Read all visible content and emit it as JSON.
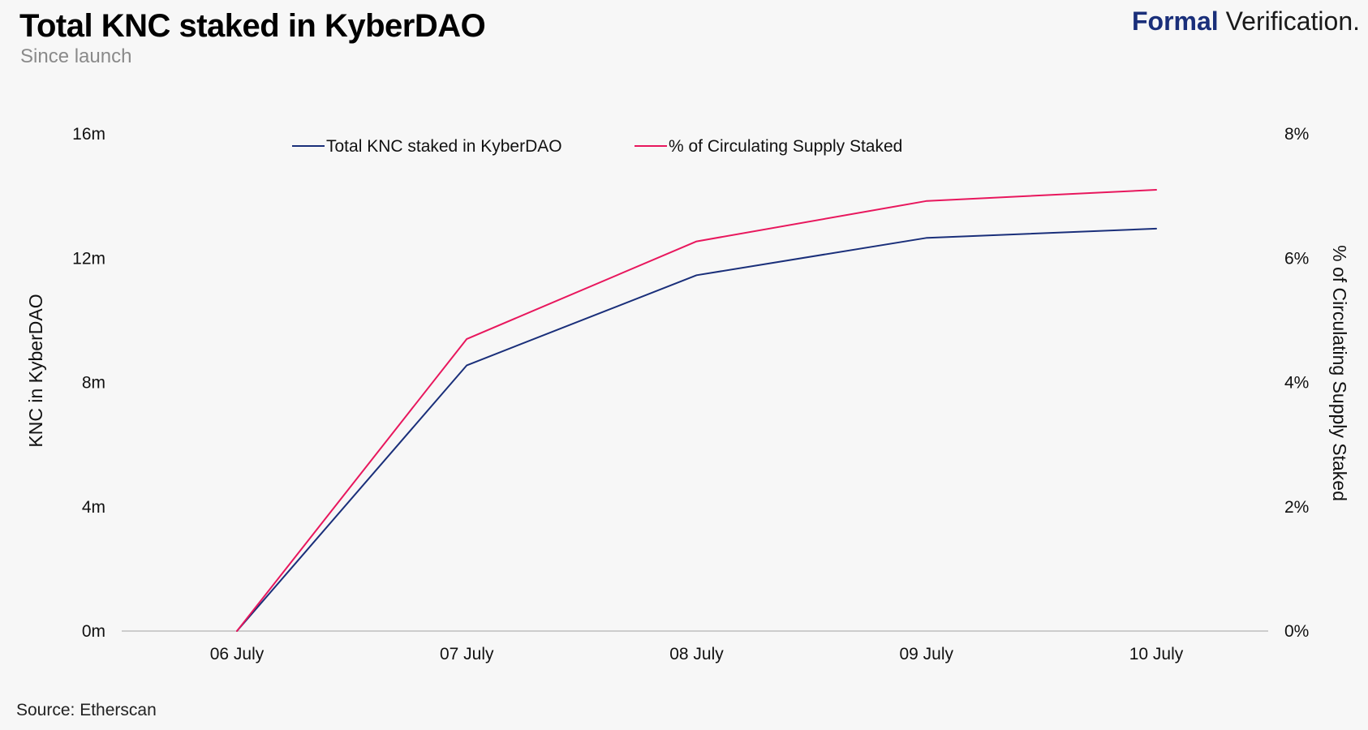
{
  "header": {
    "title": "Total KNC staked in KyberDAO",
    "subtitle": "Since launch",
    "brand_bold": "Formal",
    "brand_light": "Verification."
  },
  "footer": {
    "source": "Source: Etherscan"
  },
  "chart_data": {
    "type": "line",
    "title": "Total KNC staked in KyberDAO",
    "subtitle": "Since launch",
    "categories": [
      "06 July",
      "07 July",
      "08 July",
      "09 July",
      "10 July"
    ],
    "ylabel_left": "KNC in KyberDAO",
    "ylabel_right": "% of Circulating Supply Staked",
    "y_left": {
      "min": 0,
      "max": 16,
      "ticks": [
        0,
        4,
        8,
        12,
        16
      ],
      "tick_labels": [
        "0m",
        "4m",
        "8m",
        "12m",
        "16m"
      ]
    },
    "y_right": {
      "min": 0,
      "max": 8,
      "ticks": [
        0,
        2,
        4,
        6,
        8
      ],
      "tick_labels": [
        "0%",
        "2%",
        "4%",
        "6%",
        "8%"
      ]
    },
    "series": [
      {
        "name": "Total KNC staked in KyberDAO",
        "axis": "left",
        "color": "#1a2f7a",
        "values": [
          0,
          8.55,
          11.45,
          12.65,
          12.95
        ]
      },
      {
        "name": "% of Circulating Supply Staked",
        "axis": "right",
        "color": "#e8175d",
        "values": [
          0,
          4.7,
          6.27,
          6.92,
          7.1
        ]
      }
    ],
    "legend_position": "top-center",
    "grid": false
  }
}
